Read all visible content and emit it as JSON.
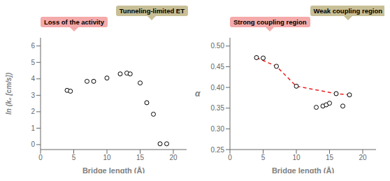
{
  "chart_data": [
    {
      "type": "scatter",
      "x_label": "Bridge length (Å)",
      "y_label": "ln (k₀ [cm/s])",
      "xlim": [
        0,
        22
      ],
      "ylim": [
        -0.3,
        6.5
      ],
      "xticks": [
        0,
        5,
        10,
        15,
        20
      ],
      "yticks": [
        0,
        1,
        2,
        3,
        4,
        5,
        6
      ],
      "grid": false,
      "annotations": [
        {
          "text": "Loss of the activity",
          "color": "#F5AAAA"
        },
        {
          "text": "Tunneling-limited  ET",
          "color": "#C8BF96"
        }
      ],
      "series": [
        {
          "type": "scatter",
          "color": "black",
          "marker": "hollow circle",
          "x": [
            4,
            4.5,
            7,
            8,
            10,
            12,
            13,
            13.5,
            15,
            16,
            17,
            18,
            19
          ],
          "y": [
            3.3,
            3.25,
            3.85,
            3.85,
            4.05,
            4.3,
            4.35,
            4.3,
            3.75,
            2.55,
            1.85,
            0.05,
            0.05
          ]
        }
      ]
    },
    {
      "type": "scatter",
      "x_label": "Bridge length (Å)",
      "y_label": "α",
      "xlim": [
        0,
        22
      ],
      "ylim": [
        0.25,
        0.52
      ],
      "xticks": [
        0,
        5,
        10,
        15,
        20
      ],
      "yticks": [
        0.25,
        {
          "value": 0.3,
          "label": "0.30"
        },
        0.35,
        {
          "value": 0.4,
          "label": "0.40"
        },
        0.45,
        {
          "value": 0.5,
          "label": "0.50"
        }
      ],
      "grid": false,
      "annotations": [
        {
          "text": "Strong coupling region",
          "color": "#F5AAAA"
        },
        {
          "text": "Weak coupling region",
          "color": "#C8BF96"
        }
      ],
      "series": [
        {
          "type": "line",
          "color": "#EE2020",
          "line_style": "dashed",
          "x": [
            4,
            7,
            10,
            16,
            18
          ],
          "y": [
            0.472,
            0.451,
            0.403,
            0.385,
            0.382
          ]
        },
        {
          "type": "scatter",
          "color": "black",
          "marker": "hollow circle",
          "x": [
            4,
            5,
            7,
            10,
            13,
            14,
            14.5,
            15,
            16,
            17,
            18
          ],
          "y": [
            0.472,
            0.471,
            0.451,
            0.403,
            0.352,
            0.355,
            0.358,
            0.362,
            0.385,
            0.355,
            0.382
          ]
        }
      ]
    }
  ]
}
